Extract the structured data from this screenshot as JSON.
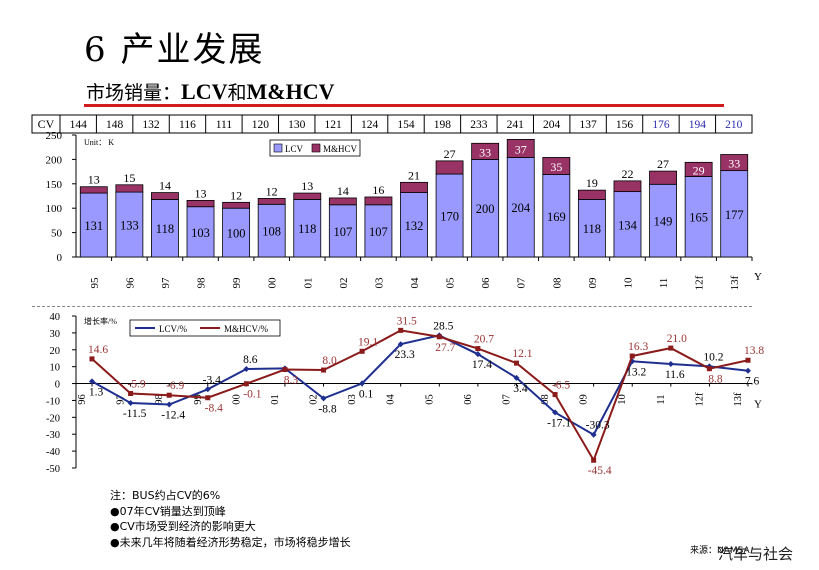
{
  "heading": {
    "title": "6 产业发展",
    "subtitle_prefix": "市场销量：",
    "subtitle_a": "LCV",
    "subtitle_mid": "和",
    "subtitle_b": "M&HCV"
  },
  "colors": {
    "lcv_bar": "#9999ff",
    "mhcv_bar": "#993366",
    "lcv_line": "#1f2f8f",
    "mhcv_line": "#8b1a1a",
    "label_red": "#993333",
    "rule": "#d21c1c",
    "forecast_cv": "#2b2bb0"
  },
  "cv_row": {
    "label": "CV",
    "values": [
      "144",
      "148",
      "132",
      "116",
      "111",
      "120",
      "130",
      "121",
      "124",
      "154",
      "198",
      "233",
      "241",
      "204",
      "137",
      "156",
      "176",
      "194",
      "210"
    ]
  },
  "chart_data": [
    {
      "type": "bar",
      "stacked": true,
      "unit_label": "Unit： K",
      "categories": [
        "95",
        "96",
        "97",
        "98",
        "99",
        "00",
        "01",
        "02",
        "03",
        "04",
        "05",
        "06",
        "07",
        "08",
        "09",
        "10",
        "11",
        "12f",
        "13f"
      ],
      "series": [
        {
          "name": "LCV",
          "values": [
            131,
            133,
            118,
            103,
            100,
            108,
            118,
            107,
            107,
            132,
            170,
            200,
            204,
            169,
            118,
            134,
            149,
            165,
            177
          ]
        },
        {
          "name": "M&HCV",
          "values": [
            13,
            15,
            14,
            13,
            12,
            12,
            13,
            14,
            16,
            21,
            27,
            33,
            37,
            35,
            19,
            22,
            27,
            29,
            33
          ]
        }
      ],
      "ylim": [
        0,
        250
      ],
      "yticks": [
        "0",
        "50",
        "100",
        "150",
        "200",
        "250"
      ],
      "xlabel": "Y",
      "legend_position": "top"
    },
    {
      "type": "line",
      "unit_label": "增长率/%",
      "categories": [
        "96",
        "97",
        "98",
        "99",
        "00",
        "01",
        "02",
        "03",
        "04",
        "05",
        "06",
        "07",
        "08",
        "09",
        "10",
        "11",
        "12f",
        "13f"
      ],
      "series": [
        {
          "name": "LCV/%",
          "values": [
            1.3,
            -11.5,
            -12.4,
            -3.4,
            8.6,
            9.0,
            -8.8,
            0.1,
            23.3,
            28.5,
            17.4,
            3.4,
            -17.1,
            -30.3,
            13.2,
            11.6,
            10.2,
            7.6
          ]
        },
        {
          "name": "M&HCV/%",
          "values": [
            14.6,
            -5.9,
            -6.9,
            -8.4,
            -0.1,
            8.3,
            8.0,
            19.1,
            31.5,
            27.7,
            20.7,
            12.1,
            -6.5,
            -45.4,
            16.3,
            21.0,
            8.8,
            13.8
          ]
        }
      ],
      "ylim": [
        -50,
        40
      ],
      "yticks": [
        "40",
        "30",
        "20",
        "10",
        "0",
        "-10",
        "-20",
        "-30",
        "-40",
        "-50"
      ],
      "xlabel": "Y",
      "legend_position": "top"
    }
  ],
  "line_labels": {
    "lcv": [
      "1.3",
      "-11.5",
      "-12.4",
      "-3.4",
      "8.6",
      "",
      "-8.8",
      "0.1",
      "23.3",
      "28.5",
      "17.4",
      "3.4",
      "-17.1",
      "-30.3",
      "13.2",
      "11.6",
      "10.2",
      "7.6"
    ],
    "mhcv": [
      "14.6",
      "-5.9",
      "-6.9",
      "-8.4",
      "-0.1",
      "8.3",
      "8.0",
      "19.1",
      "31.5",
      "27.7",
      "20.7",
      "12.1",
      "-6.5",
      "-45.4",
      "16.3",
      "21.0",
      "8.8",
      "13.8"
    ]
  },
  "notes": [
    "注：BUS约占CV的6%",
    "●07年CV销量达到顶峰",
    "●CV市场受到经济的影响更大",
    "●未来几年将随着经济形势稳定，市场将稳步增长"
  ],
  "source": "来源：NAMSA",
  "watermark": "汽车与社会"
}
